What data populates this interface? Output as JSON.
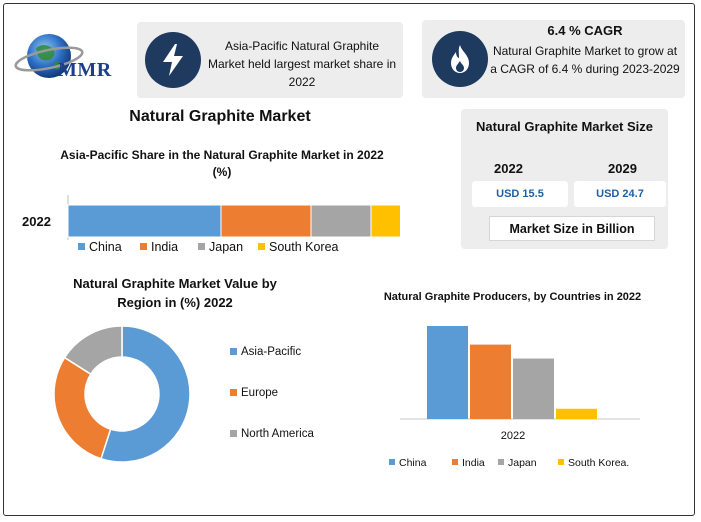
{
  "brand": {
    "logo_text": "MMR"
  },
  "info_cards": [
    {
      "icon": "lightning-bolt-icon",
      "text": "Asia-Pacific Natural Graphite Market held largest market share in 2022"
    },
    {
      "icon": "flame-icon",
      "title": "6.4 % CAGR",
      "text": "Natural Graphite Market to grow at a CAGR of 6.4 % during 2023-2029"
    }
  ],
  "main_title": "Natural Graphite Market",
  "market_size": {
    "title": "Natural Graphite Market Size",
    "year_a": "2022",
    "year_b": "2029",
    "value_a": "USD 15.5",
    "value_b": "USD 24.7",
    "unit_label": "Market Size in Billion"
  },
  "colors": {
    "China": "#5b9bd5",
    "India": "#ed7d31",
    "Japan": "#a5a5a5",
    "South Korea": "#ffc000",
    "Asia-Pacific": "#5b9bd5",
    "Europe": "#ed7d31",
    "North America": "#a5a5a5",
    "icon_circle": "#1f3a5f"
  },
  "chart_data": [
    {
      "type": "bar",
      "orientation": "horizontal-stacked",
      "title": "Asia-Pacific Share in the Natural Graphite Market in 2022 (%)",
      "categories": [
        "2022"
      ],
      "series": [
        {
          "name": "China",
          "values": [
            51
          ]
        },
        {
          "name": "India",
          "values": [
            30
          ]
        },
        {
          "name": "Japan",
          "values": [
            20
          ]
        },
        {
          "name": "South Korea",
          "values": [
            10
          ]
        }
      ],
      "legend": "bottom"
    },
    {
      "type": "pie",
      "variant": "donut",
      "title": "Natural Graphite Market Value by Region in (%) 2022",
      "labels": [
        "Asia-Pacific",
        "Europe",
        "North America"
      ],
      "values": [
        55,
        29,
        16
      ],
      "legend": "right"
    },
    {
      "type": "bar",
      "title": "Natural Graphite Producers, by Countries in 2022",
      "categories": [
        "2022"
      ],
      "series": [
        {
          "name": "China",
          "values": [
            100
          ]
        },
        {
          "name": "India",
          "values": [
            80
          ]
        },
        {
          "name": "Japan",
          "values": [
            65
          ]
        },
        {
          "name": "South Korea.",
          "values": [
            11
          ]
        }
      ],
      "ylim": [
        0,
        100
      ],
      "legend": "bottom"
    }
  ]
}
